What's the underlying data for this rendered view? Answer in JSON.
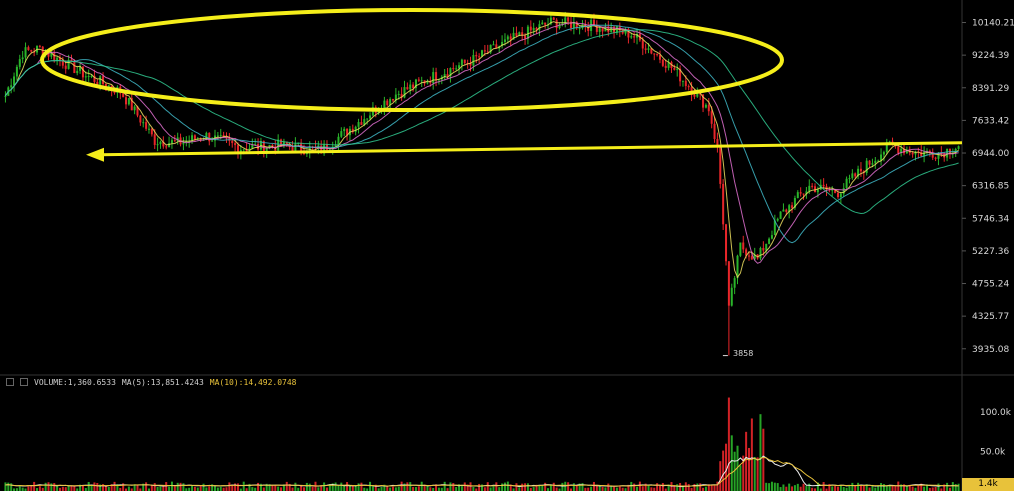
{
  "chart_data": {
    "type": "candlestick",
    "price_axis": {
      "ticks": [
        "10140.21",
        "9224.39",
        "8391.29",
        "7633.42",
        "6944.00",
        "6316.85",
        "5746.34",
        "5227.36",
        "4755.24",
        "4325.77",
        "3935.08"
      ],
      "log_scale": true,
      "range": [
        3700,
        10700
      ]
    },
    "volume_axis": {
      "ticks": [
        "100.0k",
        "50.0k"
      ],
      "range": [
        0,
        125000
      ]
    },
    "low_annotation": "3858",
    "legend": {
      "volume": "VOLUME:1,360.6533",
      "ma5": "MA(5):13,851.4243",
      "ma10": "MA(10):14,492.0748"
    },
    "last_volume_tag": "1.4k",
    "annotations": [
      {
        "type": "ellipse",
        "color": "#f5ee1a"
      },
      {
        "type": "horizontal-arrow",
        "color": "#f5ee1a",
        "level": 7030
      }
    ],
    "colors": {
      "up": "#2ab52a",
      "down": "#e8262a",
      "ma_short": "#f0e060",
      "ma_mid": "#e070d0",
      "ma_long": "#40b8c8",
      "ma_xlong": "#30c890",
      "annotation": "#f5ee1a"
    }
  }
}
